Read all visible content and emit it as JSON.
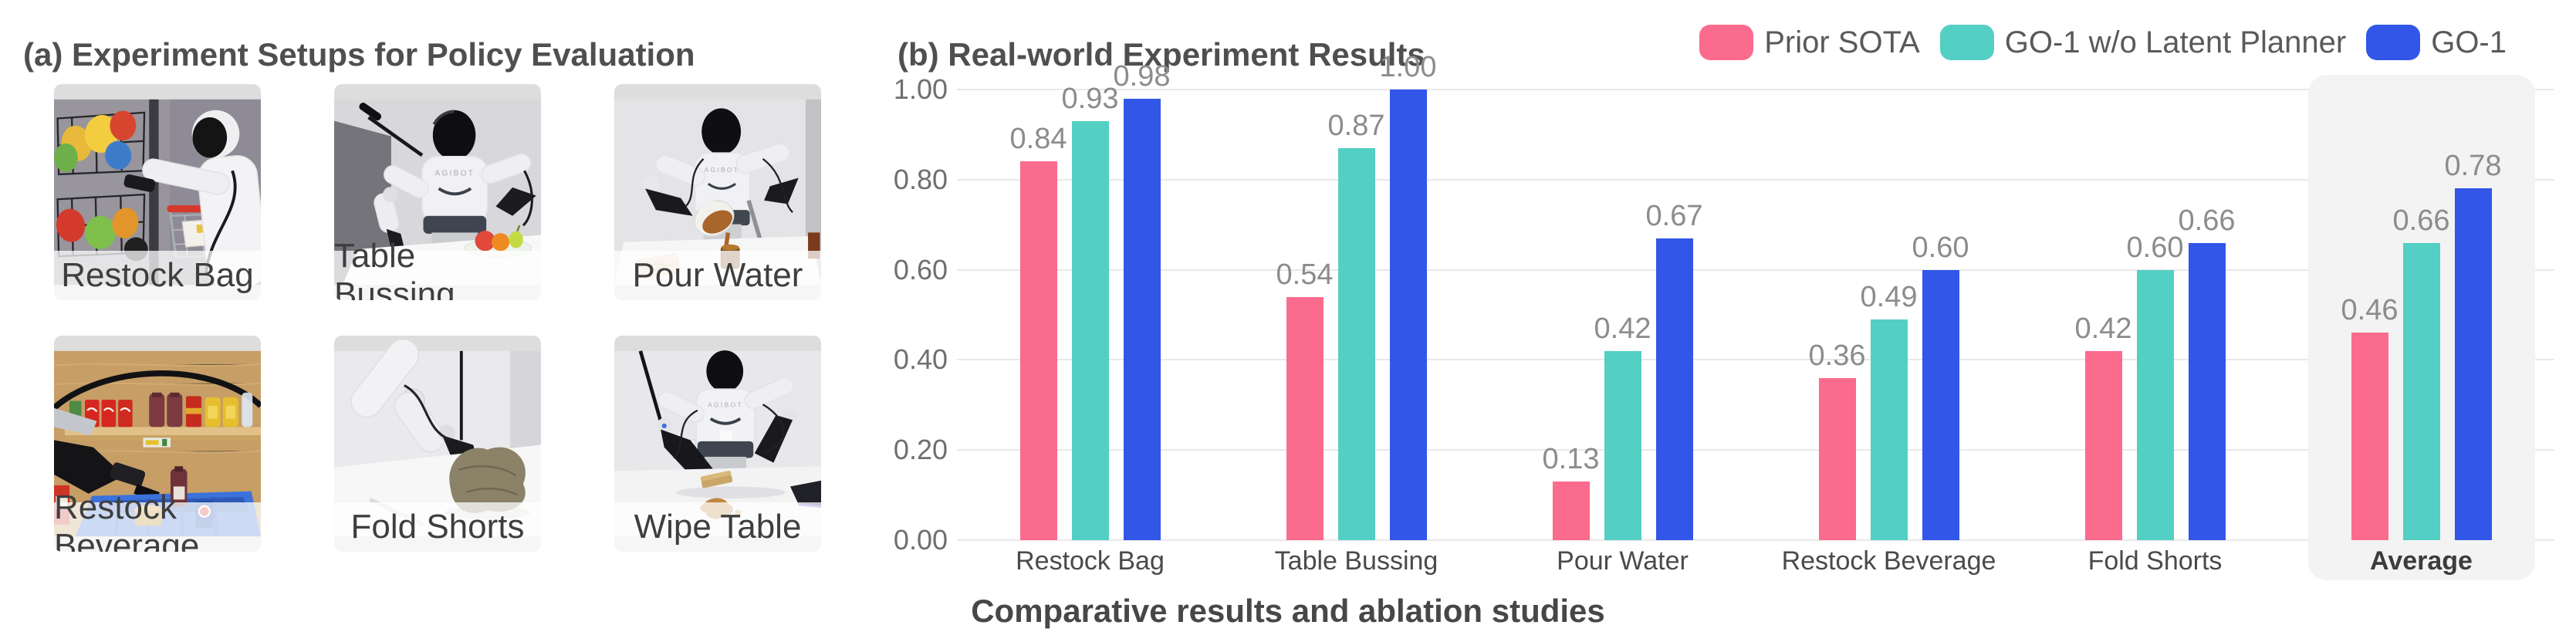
{
  "panel_a": {
    "title": "(a) Experiment Setups for Policy Evaluation",
    "robot_brand": "AGIBOT",
    "photos": [
      {
        "id": "restock-bag",
        "label": "Restock Bag"
      },
      {
        "id": "table-bussing",
        "label": "Table Bussing"
      },
      {
        "id": "pour-water",
        "label": "Pour Water"
      },
      {
        "id": "restock-beverage",
        "label": "Restock Beverage"
      },
      {
        "id": "fold-shorts",
        "label": "Fold Shorts"
      },
      {
        "id": "wipe-table",
        "label": "Wipe Table"
      }
    ]
  },
  "panel_b": {
    "title": "(b) Real-world Experiment Results",
    "caption": "Comparative results and ablation studies"
  },
  "chart_data": {
    "type": "bar",
    "categories": [
      "Restock Bag",
      "Table Bussing",
      "Pour Water",
      "Restock Beverage",
      "Fold Shorts",
      "Average"
    ],
    "series": [
      {
        "name": "Prior SOTA",
        "color": "#FB6B8E",
        "values": [
          0.84,
          0.54,
          0.13,
          0.36,
          0.42,
          0.46
        ]
      },
      {
        "name": "GO-1 w/o Latent Planner",
        "color": "#53CFC4",
        "values": [
          0.93,
          0.87,
          0.42,
          0.49,
          0.6,
          0.66
        ]
      },
      {
        "name": "GO-1",
        "color": "#3156E8",
        "values": [
          0.98,
          1.0,
          0.67,
          0.6,
          0.66,
          0.78
        ]
      }
    ],
    "ylim": [
      0,
      1
    ],
    "yticks": [
      "0.00",
      "0.20",
      "0.40",
      "0.60",
      "0.80",
      "1.00"
    ],
    "grid": true,
    "legend_position": "top-right",
    "value_labels": true,
    "highlight_category": "Average",
    "highlight_color": "#F3F3F4"
  }
}
